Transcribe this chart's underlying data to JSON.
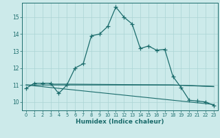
{
  "xlabel": "Humidex (Indice chaleur)",
  "background_color": "#cceaea",
  "line_color": "#1a6b6b",
  "grid_color": "#aad4d4",
  "xlim": [
    -0.5,
    23.5
  ],
  "ylim": [
    9.5,
    15.85
  ],
  "yticks": [
    10,
    11,
    12,
    13,
    14,
    15
  ],
  "xticks": [
    0,
    1,
    2,
    3,
    4,
    5,
    6,
    7,
    8,
    9,
    10,
    11,
    12,
    13,
    14,
    15,
    16,
    17,
    18,
    19,
    20,
    21,
    22,
    23
  ],
  "line1_x": [
    0,
    1,
    2,
    3,
    4,
    5,
    6,
    7,
    8,
    9,
    10,
    11,
    12,
    13,
    14,
    15,
    16,
    17,
    18,
    19,
    20,
    21,
    22,
    23
  ],
  "line1_y": [
    10.8,
    11.1,
    11.1,
    11.1,
    10.5,
    11.0,
    12.0,
    12.25,
    13.9,
    14.0,
    14.45,
    15.6,
    15.0,
    14.6,
    13.15,
    13.3,
    13.05,
    13.1,
    11.5,
    10.85,
    10.1,
    10.05,
    10.0,
    9.8
  ],
  "line2_x": [
    0,
    18,
    23
  ],
  "line2_y": [
    11.0,
    11.0,
    10.9
  ],
  "line3_x": [
    0,
    23
  ],
  "line3_y": [
    11.0,
    9.85
  ],
  "line4_x": [
    3,
    5,
    18,
    23
  ],
  "line4_y": [
    11.05,
    11.05,
    11.0,
    10.92
  ]
}
